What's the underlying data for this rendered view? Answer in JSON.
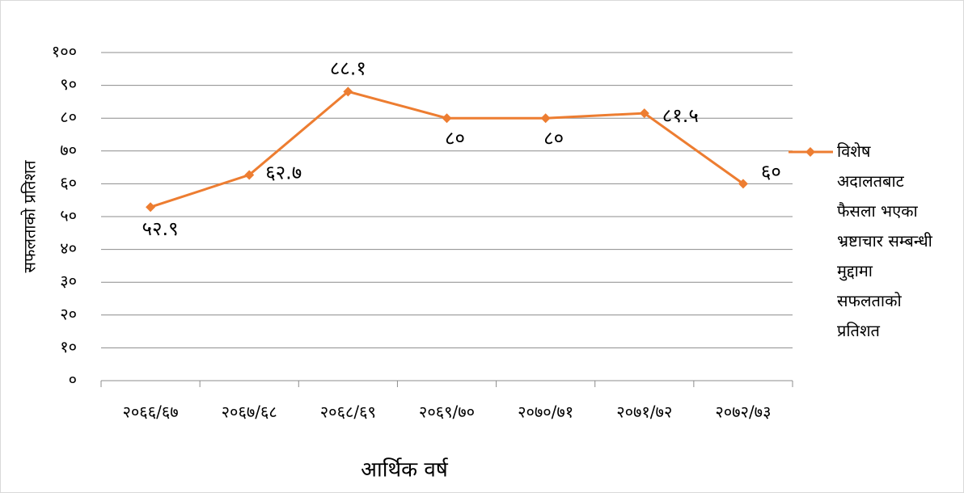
{
  "chart_data": {
    "type": "line",
    "xlabel": "आर्थिक वर्ष",
    "ylabel": "सफलताको प्रतिशत",
    "categories": [
      "२०६६/६७",
      "२०६७/६८",
      "२०६८/६९",
      "२०६९/७०",
      "२०७०/७१",
      "२०७१/७२",
      "२०७२/७३"
    ],
    "series": [
      {
        "name": "विशेष अदालतबाट फैसला भएका भ्रष्टाचार सम्बन्धी मुद्दामा सफलताको प्रतिशत",
        "color": "#ed7d31",
        "values": [
          52.9,
          62.7,
          88.1,
          80,
          80,
          81.5,
          60
        ],
        "value_labels": [
          "५२.९",
          "६२.७",
          "८८.१",
          "८०",
          "८०",
          "८१.५",
          "६०"
        ]
      }
    ],
    "ylim": [
      0,
      100
    ],
    "yticks": [
      {
        "value": 0,
        "label": "०"
      },
      {
        "value": 10,
        "label": "१०"
      },
      {
        "value": 20,
        "label": "२०"
      },
      {
        "value": 30,
        "label": "३०"
      },
      {
        "value": 40,
        "label": "४०"
      },
      {
        "value": 50,
        "label": "५०"
      },
      {
        "value": 60,
        "label": "६०"
      },
      {
        "value": 70,
        "label": "७०"
      },
      {
        "value": 80,
        "label": "८०"
      },
      {
        "value": 90,
        "label": "९०"
      },
      {
        "value": 100,
        "label": "१००"
      }
    ],
    "grid": true,
    "legend": "right"
  }
}
